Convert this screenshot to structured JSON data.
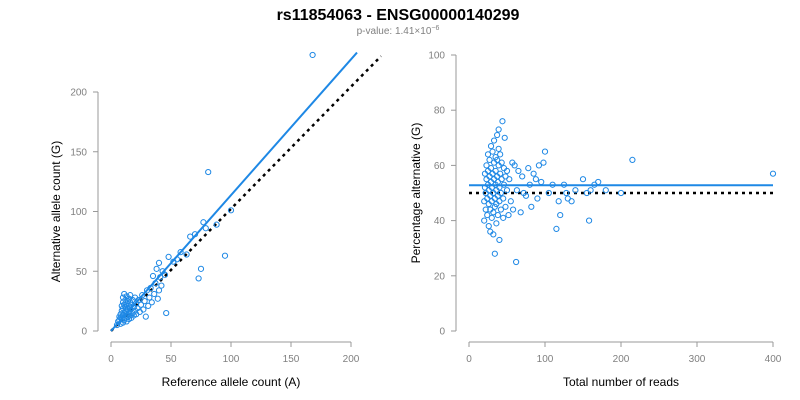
{
  "title": "rs11854063 - ENSG00000140299",
  "subtitle": {
    "prefix": "p-value: 1.41×10",
    "exponent": "−6"
  },
  "colors": {
    "points": "#1e88e5",
    "fit_line": "#1e88e5",
    "reference_line": "#000000",
    "axis": "#999999",
    "tick_text": "#808080"
  },
  "chart_data": [
    {
      "type": "scatter",
      "xlabel": "Reference allele count (A)",
      "ylabel": "Alternative allele count (G)",
      "xlim": [
        0,
        210
      ],
      "ylim": [
        0,
        235
      ],
      "xticks": [
        0,
        50,
        100,
        150,
        200
      ],
      "yticks": [
        0,
        50,
        100,
        150,
        200
      ],
      "grid": false,
      "points": [
        [
          5,
          5
        ],
        [
          6,
          8
        ],
        [
          7,
          9
        ],
        [
          7,
          12
        ],
        [
          8,
          6
        ],
        [
          8,
          11
        ],
        [
          8,
          14
        ],
        [
          9,
          10
        ],
        [
          9,
          17
        ],
        [
          9,
          21
        ],
        [
          10,
          7
        ],
        [
          10,
          13
        ],
        [
          10,
          19
        ],
        [
          10,
          24
        ],
        [
          10,
          28
        ],
        [
          11,
          9
        ],
        [
          11,
          15
        ],
        [
          11,
          22
        ],
        [
          11,
          31
        ],
        [
          12,
          11
        ],
        [
          12,
          17
        ],
        [
          12,
          26
        ],
        [
          12,
          20
        ],
        [
          13,
          8
        ],
        [
          13,
          14
        ],
        [
          13,
          23
        ],
        [
          13,
          29
        ],
        [
          14,
          12
        ],
        [
          14,
          18
        ],
        [
          14,
          25
        ],
        [
          15,
          10
        ],
        [
          15,
          16
        ],
        [
          15,
          21
        ],
        [
          15,
          27
        ],
        [
          16,
          13
        ],
        [
          16,
          19
        ],
        [
          16,
          24
        ],
        [
          16,
          30
        ],
        [
          17,
          11
        ],
        [
          17,
          22
        ],
        [
          18,
          15
        ],
        [
          18,
          26
        ],
        [
          19,
          13
        ],
        [
          19,
          20
        ],
        [
          20,
          17
        ],
        [
          20,
          28
        ],
        [
          21,
          14
        ],
        [
          21,
          23
        ],
        [
          22,
          19
        ],
        [
          23,
          26
        ],
        [
          24,
          16
        ],
        [
          25,
          22
        ],
        [
          26,
          30
        ],
        [
          27,
          18
        ],
        [
          28,
          25
        ],
        [
          30,
          34
        ],
        [
          29,
          12
        ],
        [
          31,
          21
        ],
        [
          32,
          28
        ],
        [
          33,
          36
        ],
        [
          34,
          24
        ],
        [
          35,
          46
        ],
        [
          36,
          31
        ],
        [
          37,
          40
        ],
        [
          38,
          52
        ],
        [
          39,
          27
        ],
        [
          40,
          57
        ],
        [
          40,
          34
        ],
        [
          41,
          45
        ],
        [
          42,
          38
        ],
        [
          43,
          50
        ],
        [
          45,
          47
        ],
        [
          46,
          15
        ],
        [
          48,
          62
        ],
        [
          52,
          58
        ],
        [
          55,
          60
        ],
        [
          58,
          66
        ],
        [
          63,
          64
        ],
        [
          66,
          79
        ],
        [
          70,
          81
        ],
        [
          73,
          44
        ],
        [
          75,
          52
        ],
        [
          77,
          91
        ],
        [
          79,
          86
        ],
        [
          81,
          133
        ],
        [
          88,
          89
        ],
        [
          95,
          63
        ],
        [
          100,
          101
        ],
        [
          168,
          231
        ]
      ],
      "fit_line": {
        "x": [
          0,
          205
        ],
        "y": [
          0,
          233
        ]
      },
      "reference_line": {
        "x": [
          0,
          225
        ],
        "y": [
          0,
          230
        ]
      }
    },
    {
      "type": "scatter",
      "xlabel": "Total number of reads",
      "ylabel": "Percentage alternative (G)",
      "xlim": [
        0,
        400
      ],
      "ylim": [
        0,
        100
      ],
      "xticks": [
        0,
        100,
        200,
        300,
        400
      ],
      "yticks": [
        0,
        20,
        40,
        60,
        80,
        100
      ],
      "grid": false,
      "points": [
        [
          20,
          40
        ],
        [
          20,
          47
        ],
        [
          21,
          52
        ],
        [
          21,
          57
        ],
        [
          22,
          44
        ],
        [
          22,
          50
        ],
        [
          23,
          55
        ],
        [
          23,
          60
        ],
        [
          24,
          42
        ],
        [
          24,
          48
        ],
        [
          25,
          53
        ],
        [
          25,
          58
        ],
        [
          25,
          64
        ],
        [
          26,
          38
        ],
        [
          26,
          46
        ],
        [
          26,
          51
        ],
        [
          27,
          56
        ],
        [
          27,
          62
        ],
        [
          28,
          36
        ],
        [
          28,
          44
        ],
        [
          28,
          49
        ],
        [
          29,
          54
        ],
        [
          29,
          59
        ],
        [
          29,
          67
        ],
        [
          30,
          41
        ],
        [
          30,
          47
        ],
        [
          30,
          52
        ],
        [
          31,
          57
        ],
        [
          31,
          65
        ],
        [
          32,
          35
        ],
        [
          32,
          43
        ],
        [
          32,
          50
        ],
        [
          33,
          55
        ],
        [
          33,
          61
        ],
        [
          33,
          69
        ],
        [
          34,
          28
        ],
        [
          34,
          45
        ],
        [
          34,
          48
        ],
        [
          35,
          53
        ],
        [
          35,
          58
        ],
        [
          35,
          63
        ],
        [
          36,
          39
        ],
        [
          36,
          46
        ],
        [
          36,
          51
        ],
        [
          37,
          56
        ],
        [
          37,
          62
        ],
        [
          37,
          71
        ],
        [
          38,
          42
        ],
        [
          38,
          49
        ],
        [
          38,
          54
        ],
        [
          39,
          60
        ],
        [
          39,
          66
        ],
        [
          39,
          73
        ],
        [
          40,
          33
        ],
        [
          40,
          47
        ],
        [
          40,
          52
        ],
        [
          41,
          57
        ],
        [
          41,
          64
        ],
        [
          42,
          44
        ],
        [
          42,
          50
        ],
        [
          43,
          55
        ],
        [
          43,
          61
        ],
        [
          44,
          76
        ],
        [
          45,
          41
        ],
        [
          45,
          48
        ],
        [
          46,
          53
        ],
        [
          46,
          59
        ],
        [
          47,
          70
        ],
        [
          48,
          45
        ],
        [
          48,
          56
        ],
        [
          50,
          51
        ],
        [
          50,
          58
        ],
        [
          52,
          42
        ],
        [
          53,
          55
        ],
        [
          55,
          47
        ],
        [
          57,
          61
        ],
        [
          58,
          44
        ],
        [
          60,
          60
        ],
        [
          62,
          25
        ],
        [
          63,
          51
        ],
        [
          65,
          58
        ],
        [
          68,
          43
        ],
        [
          70,
          56
        ],
        [
          72,
          50
        ],
        [
          75,
          49
        ],
        [
          78,
          59
        ],
        [
          80,
          53
        ],
        [
          82,
          45
        ],
        [
          85,
          57
        ],
        [
          88,
          55
        ],
        [
          90,
          48
        ],
        [
          92,
          60
        ],
        [
          95,
          54
        ],
        [
          98,
          61
        ],
        [
          100,
          65
        ],
        [
          105,
          50
        ],
        [
          110,
          53
        ],
        [
          115,
          37
        ],
        [
          118,
          47
        ],
        [
          120,
          42
        ],
        [
          125,
          53
        ],
        [
          128,
          50
        ],
        [
          130,
          48
        ],
        [
          135,
          47
        ],
        [
          140,
          51
        ],
        [
          150,
          55
        ],
        [
          155,
          50
        ],
        [
          158,
          40
        ],
        [
          160,
          51
        ],
        [
          165,
          53
        ],
        [
          170,
          54
        ],
        [
          180,
          51
        ],
        [
          200,
          50
        ],
        [
          215,
          62
        ],
        [
          400,
          57
        ]
      ],
      "fit_line": {
        "x": [
          0,
          400
        ],
        "y": [
          52.8,
          52.8
        ]
      },
      "reference_line": {
        "x": [
          0,
          400
        ],
        "y": [
          50,
          50
        ]
      }
    }
  ]
}
